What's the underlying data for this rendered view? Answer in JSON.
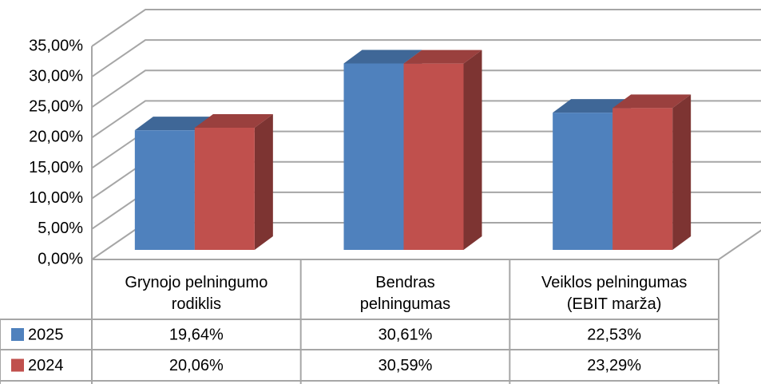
{
  "chart_data": {
    "type": "bar3d",
    "categories": [
      "Grynojo pelningumo\nrodiklis",
      "Bendras\npelningumas",
      "Veiklos pelningumas\n(EBIT marža)"
    ],
    "series": [
      {
        "name": "2025",
        "color": "#4f81bd",
        "values": [
          19.64,
          30.61,
          22.53
        ],
        "value_labels": [
          "19,64%",
          "30,61%",
          "22,53%"
        ]
      },
      {
        "name": "2024",
        "color": "#c0504d",
        "values": [
          20.06,
          30.59,
          23.29
        ],
        "value_labels": [
          "20,06%",
          "30,59%",
          "23,29%"
        ]
      }
    ],
    "ylim": [
      0,
      35
    ],
    "yticks": [
      {
        "value": 0,
        "label": "0,00%"
      },
      {
        "value": 5,
        "label": "5,00%"
      },
      {
        "value": 10,
        "label": "10,00%"
      },
      {
        "value": 15,
        "label": "15,00%"
      },
      {
        "value": 20,
        "label": "20,00%"
      },
      {
        "value": 25,
        "label": "25,00%"
      },
      {
        "value": 30,
        "label": "30,00%"
      },
      {
        "value": 35,
        "label": "35,00%"
      }
    ],
    "grid": true,
    "data_table": true
  }
}
